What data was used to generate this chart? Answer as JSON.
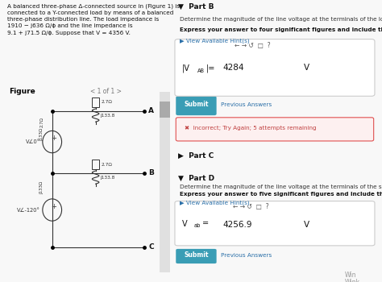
{
  "bg_color": "#f0f4f8",
  "left_panel_bg": "#e8f0f8",
  "right_panel_bg": "#f8f8f8",
  "figure_bg": "#ffffff",
  "lc": "#333333",
  "problem_text": "A balanced three-phase Δ-connected source in (Figure 1) is\nconnected to a Y-connected load by means of a balanced\nthree-phase distribution line. The load impedance is\n1910 − j636 Ω/ϕ and the line impedance is\n9.1 + j71.5 Ω/ϕ. Suppose that V = 4356 V.",
  "figure_label": "Figure",
  "figure_nav": "< 1 of 1 >",
  "part_b_title": "▼  Part B",
  "part_b_desc": "Determine the magnitude of the line voltage at the terminals of the load.",
  "part_b_bold": "Express your answer to four significant figures and include the appropriate units.",
  "part_b_hint": "▶ View Available Hint(s)",
  "part_b_input_label": "|V",
  "part_b_sub": "AB",
  "part_b_input_label2": "|=",
  "part_b_value": "4284",
  "part_b_unit": "V",
  "part_b_submit": "Submit",
  "part_b_prev": "Previous Answers",
  "part_b_error": "✖  Incorrect; Try Again; 5 attempts remaining",
  "part_c_title": "▶  Part C",
  "part_d_title": "▼  Part D",
  "part_d_desc": "Determine the magnitude of the line voltage at the terminals of the source.",
  "part_d_bold": "Express your answer to five significant figures and include the appropriate units.",
  "part_d_hint": "▶ View Available Hint(s)",
  "part_d_input_label": "V",
  "part_d_sub": "ab",
  "part_d_input_label2": "=",
  "part_d_value": "4256.9",
  "part_d_unit": "V",
  "part_d_submit": "Submit",
  "part_d_prev": "Previous Answers",
  "win_text1": "Win",
  "win_text2": "Wink",
  "teal_color": "#3a9db5",
  "hint_color": "#2a6fa8",
  "error_bg": "#fdf0f0",
  "error_border": "#e05050",
  "error_text": "#c04040",
  "input_border": "#aaaaaa",
  "toolbar_bg": "#888888",
  "scrollbar_bg": "#cccccc"
}
